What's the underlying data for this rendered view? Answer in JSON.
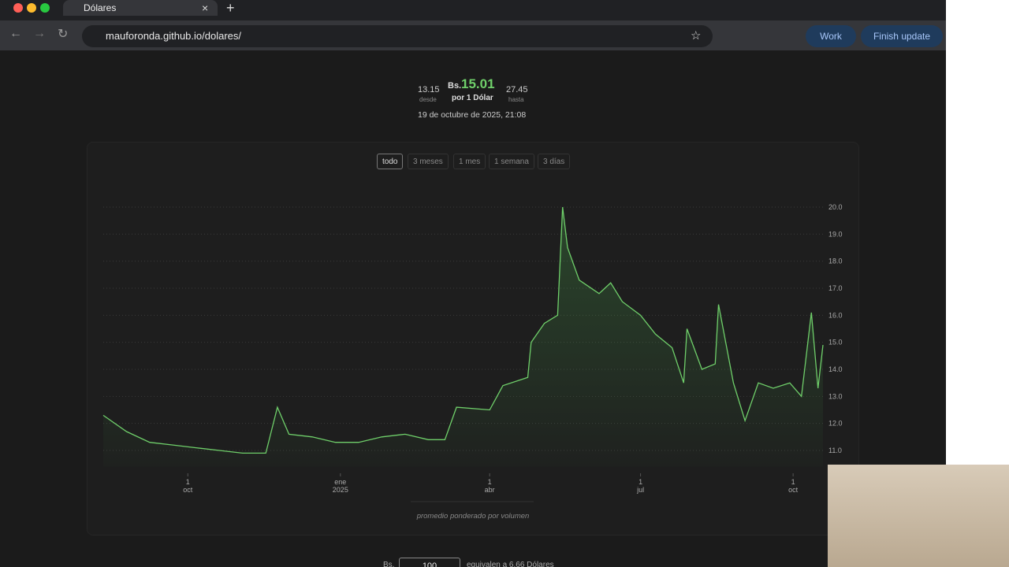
{
  "browser": {
    "tab_title": "Dólares",
    "url": "mauforonda.github.io/dolares/",
    "profile": "Work",
    "update_button": "Finish update"
  },
  "page": {
    "rate": {
      "currency": "Bs.",
      "value": "15.01",
      "unit": "por 1 Dólar"
    },
    "low": {
      "value": "13.15",
      "label": "desde"
    },
    "high": {
      "value": "27.45",
      "label": "hasta"
    },
    "updated": "19 de octubre de 2025, 21:08",
    "ranges": [
      "todo",
      "3 meses",
      "1 mes",
      "1 semana",
      "3 días"
    ],
    "note": "promedio ponderado por volumen"
  },
  "chart_data": {
    "type": "line",
    "color": "#6fcf6a",
    "x": [
      "2024-08-11",
      "2024-08-25",
      "2024-09-08",
      "2024-09-22",
      "2024-10-06",
      "2024-10-20",
      "2024-11-03",
      "2024-11-17",
      "2024-11-24",
      "2024-12-01",
      "2024-12-15",
      "2024-12-29",
      "2025-01-12",
      "2025-01-26",
      "2025-02-09",
      "2025-02-23",
      "2025-03-05",
      "2025-03-12",
      "2025-04-01",
      "2025-04-09",
      "2025-04-24",
      "2025-04-26",
      "2025-05-04",
      "2025-05-12",
      "2025-05-15",
      "2025-05-18",
      "2025-05-25",
      "2025-06-06",
      "2025-06-13",
      "2025-06-20",
      "2025-07-01",
      "2025-07-10",
      "2025-07-20",
      "2025-07-27",
      "2025-07-29",
      "2025-08-07",
      "2025-08-15",
      "2025-08-17",
      "2025-08-26",
      "2025-09-02",
      "2025-09-10",
      "2025-09-19",
      "2025-09-29",
      "2025-10-06",
      "2025-10-12",
      "2025-10-16",
      "2025-10-19"
    ],
    "values": [
      12.3,
      11.7,
      11.3,
      11.2,
      11.1,
      11.0,
      10.9,
      10.9,
      12.6,
      11.6,
      11.5,
      11.3,
      11.3,
      11.5,
      11.6,
      11.4,
      11.4,
      12.6,
      12.5,
      13.4,
      13.7,
      15.0,
      15.7,
      16.0,
      20.0,
      18.5,
      17.3,
      16.8,
      17.2,
      16.5,
      16.0,
      15.3,
      14.8,
      13.5,
      15.5,
      14.0,
      14.2,
      16.4,
      13.5,
      12.1,
      13.5,
      13.3,
      13.5,
      13.0,
      16.1,
      13.3,
      14.9
    ],
    "xlim": [
      "2024-08-11",
      "2025-10-19"
    ],
    "xticks": [
      {
        "value": "2024-10-01",
        "label": [
          "1",
          "oct"
        ]
      },
      {
        "value": "2025-01-01",
        "label": [
          "ene",
          "2025"
        ]
      },
      {
        "value": "2025-04-01",
        "label": [
          "1",
          "abr"
        ]
      },
      {
        "value": "2025-07-01",
        "label": [
          "1",
          "jul"
        ]
      },
      {
        "value": "2025-10-01",
        "label": [
          "1",
          "oct"
        ]
      }
    ],
    "ylim": [
      10.4,
      20.2
    ],
    "yticks": [
      {
        "value": 11,
        "label": "11.0"
      },
      {
        "value": 12,
        "label": "12.0"
      },
      {
        "value": 13,
        "label": "13.0"
      },
      {
        "value": 14,
        "label": "14.0"
      },
      {
        "value": 15,
        "label": "15.0"
      },
      {
        "value": 16,
        "label": "16.0"
      },
      {
        "value": 17,
        "label": "17.0"
      },
      {
        "value": 18,
        "label": "18.0"
      },
      {
        "value": 19,
        "label": "19.0"
      },
      {
        "value": 20,
        "label": "20.0"
      }
    ],
    "grid": true
  },
  "converter": {
    "currency": "Bs.",
    "amount": "100",
    "result": "equivalen a 6.66 Dólares"
  }
}
